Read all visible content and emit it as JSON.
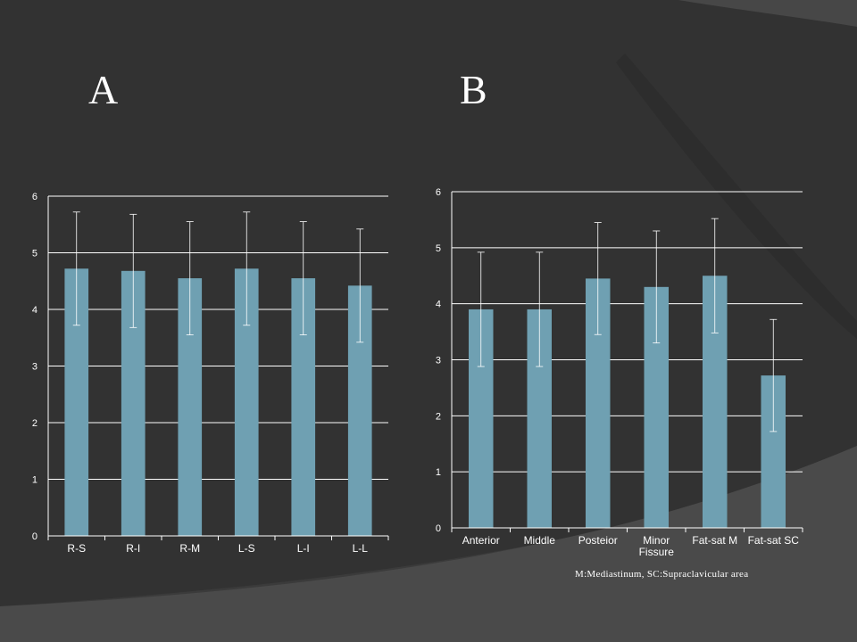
{
  "slide": {
    "panel_a_label": "A",
    "panel_b_label": "B",
    "caption": "M:Mediastinum, SC:Supraclavicular area"
  },
  "colors": {
    "background": "#3a3a3a",
    "bar": "#6fa0b2",
    "grid": "#ffffff",
    "text": "#ffffff"
  },
  "chart_data": [
    {
      "type": "bar",
      "title": "",
      "xlabel": "",
      "ylabel": "",
      "categories": [
        "R-S",
        "R-I",
        "R-M",
        "L-S",
        "L-I",
        "L-L"
      ],
      "values": [
        4.72,
        4.68,
        4.55,
        4.72,
        4.55,
        4.42
      ],
      "error": [
        1.0,
        1.0,
        1.0,
        1.0,
        1.0,
        1.0
      ],
      "ylim": [
        0,
        6
      ],
      "yticks": [
        0,
        1,
        2,
        3,
        4,
        5,
        6
      ],
      "grid": true,
      "legend": "none"
    },
    {
      "type": "bar",
      "title": "",
      "xlabel": "",
      "ylabel": "",
      "categories": [
        "Anterior",
        "Middle",
        "Posteior",
        "Minor\nFissure",
        "Fat-sat M",
        "Fat-sat SC"
      ],
      "values": [
        3.9,
        3.9,
        4.45,
        4.3,
        4.5,
        2.72
      ],
      "error": [
        1.02,
        1.02,
        1.0,
        1.0,
        1.02,
        1.0
      ],
      "ylim": [
        0,
        6
      ],
      "yticks": [
        0,
        1,
        2,
        3,
        4,
        5,
        6
      ],
      "grid": true,
      "legend": "none"
    }
  ]
}
